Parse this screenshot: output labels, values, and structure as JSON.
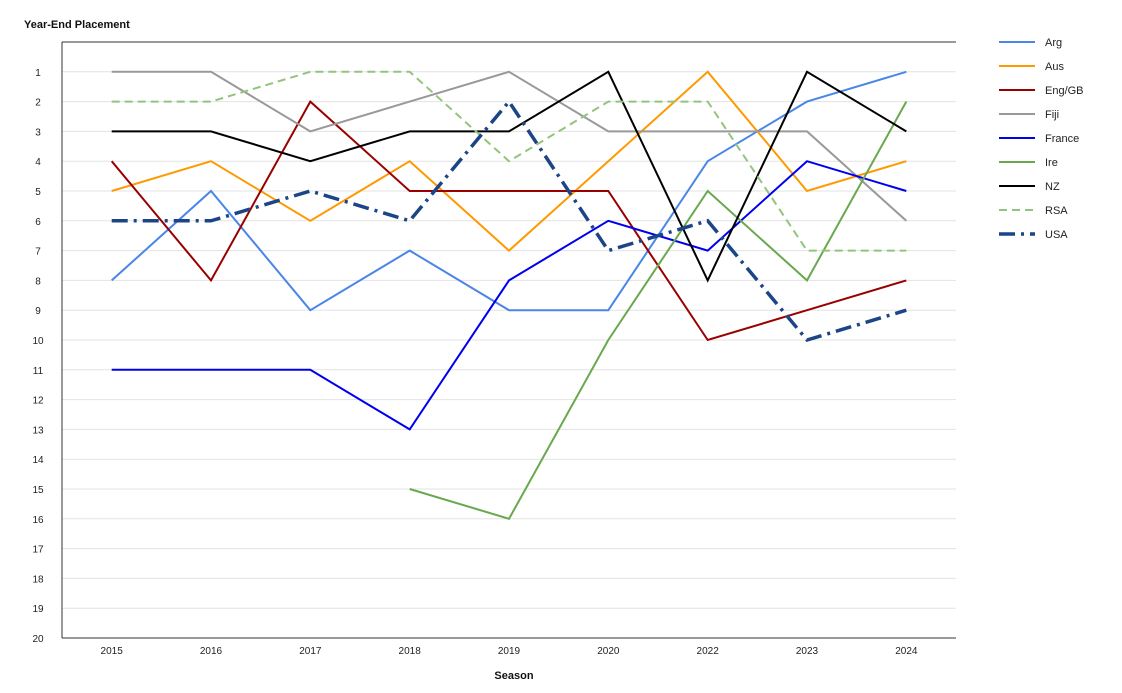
{
  "chart_data": {
    "type": "line",
    "ylabel": "Year-End Placement",
    "xlabel": "Season",
    "categories": [
      "2015",
      "2016",
      "2017",
      "2018",
      "2019",
      "2020",
      "2022",
      "2023",
      "2024"
    ],
    "y_ticks": [
      "1",
      "2",
      "3",
      "4",
      "5",
      "6",
      "7",
      "8",
      "9",
      "10",
      "11",
      "12",
      "13",
      "14",
      "15",
      "16",
      "17",
      "18",
      "19",
      "20"
    ],
    "ylim": [
      20,
      0
    ],
    "y_inverted": true,
    "grid": "horizontal",
    "legend_position": "right",
    "series": [
      {
        "name": "Arg",
        "color": "#4a86e8",
        "dash": "solid",
        "values": [
          8,
          5,
          9,
          7,
          9,
          9,
          4,
          2,
          1
        ]
      },
      {
        "name": "Aus",
        "color": "#ff9900",
        "dash": "solid",
        "values": [
          5,
          4,
          6,
          4,
          7,
          4,
          1,
          5,
          4
        ]
      },
      {
        "name": "Eng/GB",
        "color": "#990000",
        "dash": "solid",
        "values": [
          4,
          8,
          2,
          5,
          5,
          5,
          10,
          9,
          8
        ]
      },
      {
        "name": "Fiji",
        "color": "#999999",
        "dash": "solid",
        "values": [
          1,
          1,
          3,
          2,
          1,
          3,
          3,
          3,
          6
        ]
      },
      {
        "name": "France",
        "color": "#0000ee",
        "dash": "solid",
        "values": [
          11,
          11,
          11,
          13,
          8,
          6,
          7,
          4,
          5
        ]
      },
      {
        "name": "Ire",
        "color": "#6aa84f",
        "dash": "solid",
        "values": [
          null,
          null,
          null,
          15,
          16,
          10,
          5,
          8,
          2
        ]
      },
      {
        "name": "NZ",
        "color": "#000000",
        "dash": "solid",
        "values": [
          3,
          3,
          4,
          3,
          3,
          1,
          8,
          1,
          3
        ]
      },
      {
        "name": "RSA",
        "color": "#93c47d",
        "dash": "dashed",
        "values": [
          2,
          2,
          1,
          1,
          4,
          2,
          2,
          7,
          7
        ]
      },
      {
        "name": "USA",
        "color": "#1c4587",
        "dash": "dashdot",
        "values": [
          6,
          6,
          5,
          6,
          2,
          7,
          6,
          10,
          9
        ]
      }
    ]
  }
}
